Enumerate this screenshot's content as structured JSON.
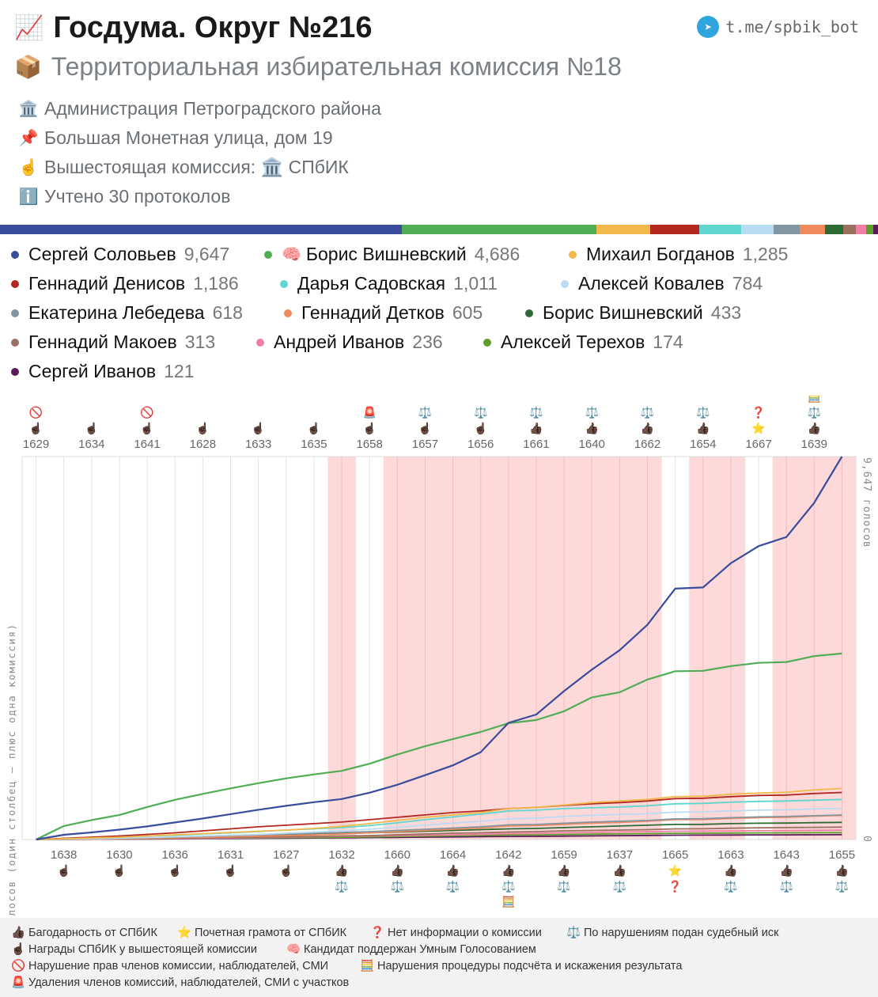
{
  "header": {
    "title_icon": "chart-increasing-icon",
    "title": "Госдума. Округ №216",
    "subtitle_icon": "package-icon",
    "subtitle": "Территориальная избирательная комиссия №18",
    "telegram_icon": "telegram-icon",
    "telegram": "t.me/spbik_bot",
    "info": [
      {
        "icon": "🏛️",
        "text": "Администрация Петроградского района"
      },
      {
        "icon": "📌",
        "text": "Большая Монетная улица, дом 19"
      },
      {
        "icon": "☝️",
        "text": "Вышестоящая комиссия: 🏛️ СПбИК"
      },
      {
        "icon": "ℹ️",
        "text": "Учтено 30 протоколов"
      }
    ]
  },
  "candidates": [
    {
      "name": "Сергей Соловьев",
      "votes": "9,647",
      "value": 9647,
      "color": "#3a4d9c"
    },
    {
      "name": "Борис Вишневский",
      "votes": "4,686",
      "value": 4686,
      "color": "#4fae55",
      "prefix": "🧠"
    },
    {
      "name": "Михаил Богданов",
      "votes": "1,285",
      "value": 1285,
      "color": "#f2b84b"
    },
    {
      "name": "Геннадий Денисов",
      "votes": "1,186",
      "value": 1186,
      "color": "#b3271f"
    },
    {
      "name": "Дарья Садовская",
      "votes": "1,011",
      "value": 1011,
      "color": "#5fd6cf"
    },
    {
      "name": "Алексей Ковалев",
      "votes": "784",
      "value": 784,
      "color": "#b9dcf5"
    },
    {
      "name": "Екатерина Лебедева",
      "votes": "618",
      "value": 618,
      "color": "#8296a1"
    },
    {
      "name": "Геннадий Детков",
      "votes": "605",
      "value": 605,
      "color": "#f08a5d"
    },
    {
      "name": "Борис Вишневский",
      "votes": "433",
      "value": 433,
      "color": "#2e6b34"
    },
    {
      "name": "Геннадий Макоев",
      "votes": "313",
      "value": 313,
      "color": "#9b7060"
    },
    {
      "name": "Андрей Иванов",
      "votes": "236",
      "value": 236,
      "color": "#ef7fa3"
    },
    {
      "name": "Алексей Терехов",
      "votes": "174",
      "value": 174,
      "color": "#5e9e2c"
    },
    {
      "name": "Сергей Иванов",
      "votes": "121",
      "value": 121,
      "color": "#5a1a5a"
    }
  ],
  "chart_data": {
    "type": "line",
    "ylabel": "набранная сумма голосов (один столбец — плюс одна комиссия)",
    "right_label_top": "9,647 голосов",
    "right_label_bottom": "0",
    "ylim": [
      0,
      9647
    ],
    "x_top": [
      "1629",
      "1634",
      "1641",
      "1628",
      "1633",
      "1635",
      "1658",
      "1657",
      "1656",
      "1661",
      "1640",
      "1662",
      "1654",
      "1667",
      "1639"
    ],
    "x_bottom": [
      "1638",
      "1630",
      "1636",
      "1631",
      "1627",
      "1632",
      "1660",
      "1664",
      "1642",
      "1659",
      "1637",
      "1665",
      "1663",
      "1643",
      "1655"
    ],
    "x_order": [
      "1629",
      "1638",
      "1634",
      "1630",
      "1641",
      "1636",
      "1628",
      "1631",
      "1633",
      "1627",
      "1635",
      "1632",
      "1658",
      "1660",
      "1657",
      "1664",
      "1656",
      "1642",
      "1661",
      "1659",
      "1640",
      "1637",
      "1662",
      "1665",
      "1654",
      "1663",
      "1667",
      "1643",
      "1639",
      "1655"
    ],
    "flagged": [
      0,
      0,
      0,
      0,
      0,
      0,
      0,
      0,
      0,
      0,
      0,
      1,
      0,
      1,
      1,
      1,
      1,
      1,
      1,
      1,
      1,
      1,
      1,
      0,
      1,
      1,
      0,
      1,
      1,
      1
    ],
    "series": [
      {
        "name": "Сергей Соловьев",
        "values": [
          0,
          120,
          180,
          250,
          330,
          430,
          530,
          640,
          750,
          850,
          940,
          1020,
          1180,
          1380,
          1620,
          1870,
          2200,
          2940,
          3150,
          3740,
          4280,
          4770,
          5410,
          6320,
          6350,
          6960,
          7390,
          7620,
          8480,
          9647
        ]
      },
      {
        "name": "Борис Вишневский",
        "values": [
          0,
          340,
          490,
          620,
          820,
          1000,
          1150,
          1290,
          1420,
          1540,
          1640,
          1730,
          1910,
          2140,
          2350,
          2530,
          2710,
          2930,
          3010,
          3230,
          3580,
          3710,
          4030,
          4240,
          4250,
          4370,
          4450,
          4470,
          4620,
          4686
        ]
      },
      {
        "name": "Михаил Богданов",
        "values": [
          0,
          20,
          40,
          60,
          90,
          120,
          150,
          180,
          210,
          240,
          280,
          330,
          400,
          480,
          560,
          620,
          680,
          780,
          810,
          870,
          930,
          970,
          1010,
          1080,
          1090,
          1140,
          1170,
          1190,
          1250,
          1285
        ]
      },
      {
        "name": "Геннадий Денисов",
        "values": [
          0,
          30,
          60,
          90,
          130,
          170,
          220,
          270,
          320,
          360,
          400,
          440,
          500,
          560,
          620,
          680,
          720,
          780,
          810,
          860,
          900,
          930,
          970,
          1030,
          1040,
          1080,
          1110,
          1120,
          1160,
          1186
        ]
      },
      {
        "name": "Дарья Садовская",
        "values": [
          0,
          20,
          40,
          60,
          90,
          110,
          140,
          170,
          200,
          240,
          270,
          300,
          350,
          420,
          500,
          570,
          640,
          720,
          740,
          780,
          800,
          820,
          850,
          900,
          910,
          940,
          960,
          970,
          990,
          1011
        ]
      },
      {
        "name": "Алексей Ковалев",
        "values": [
          0,
          10,
          20,
          35,
          50,
          70,
          90,
          110,
          130,
          160,
          190,
          220,
          260,
          310,
          360,
          410,
          460,
          520,
          540,
          580,
          610,
          630,
          650,
          690,
          695,
          720,
          740,
          750,
          770,
          784
        ]
      },
      {
        "name": "Екатерина Лебедева",
        "values": [
          0,
          10,
          20,
          30,
          45,
          60,
          80,
          100,
          120,
          140,
          160,
          180,
          200,
          230,
          260,
          290,
          320,
          370,
          380,
          410,
          440,
          460,
          480,
          520,
          525,
          550,
          570,
          580,
          600,
          618
        ]
      },
      {
        "name": "Геннадий Детков",
        "values": [
          0,
          5,
          10,
          20,
          30,
          40,
          55,
          70,
          85,
          100,
          120,
          140,
          170,
          200,
          230,
          260,
          290,
          340,
          350,
          380,
          410,
          430,
          460,
          500,
          505,
          530,
          550,
          560,
          590,
          605
        ]
      },
      {
        "name": "Борис Вишневский",
        "values": [
          0,
          10,
          20,
          30,
          45,
          60,
          75,
          90,
          105,
          120,
          135,
          150,
          170,
          190,
          210,
          230,
          250,
          270,
          280,
          300,
          320,
          340,
          360,
          380,
          382,
          400,
          410,
          415,
          425,
          433
        ]
      },
      {
        "name": "Геннадий Макоев",
        "values": [
          0,
          5,
          10,
          15,
          20,
          30,
          40,
          50,
          60,
          70,
          80,
          90,
          100,
          120,
          140,
          160,
          170,
          190,
          200,
          220,
          230,
          240,
          250,
          270,
          272,
          285,
          295,
          300,
          307,
          313
        ]
      },
      {
        "name": "Андрей Иванов",
        "values": [
          0,
          5,
          10,
          15,
          20,
          25,
          30,
          40,
          50,
          60,
          70,
          80,
          90,
          100,
          110,
          120,
          130,
          150,
          155,
          170,
          180,
          190,
          200,
          210,
          211,
          218,
          224,
          228,
          232,
          236
        ]
      },
      {
        "name": "Алексей Терехов",
        "values": [
          0,
          5,
          10,
          15,
          20,
          25,
          30,
          35,
          40,
          45,
          50,
          55,
          65,
          75,
          85,
          95,
          105,
          115,
          118,
          128,
          135,
          142,
          150,
          158,
          159,
          164,
          168,
          170,
          172,
          174
        ]
      },
      {
        "name": "Сергей Иванов",
        "values": [
          0,
          3,
          6,
          10,
          14,
          18,
          22,
          26,
          30,
          34,
          38,
          42,
          48,
          54,
          60,
          66,
          72,
          78,
          80,
          86,
          92,
          98,
          104,
          110,
          111,
          114,
          117,
          118,
          120,
          121
        ]
      }
    ]
  },
  "badges": {
    "top_upper": [
      "🚫",
      "",
      "🚫",
      "",
      "",
      "",
      "🚨",
      "⚖️",
      "⚖️",
      "⚖️",
      "⚖️",
      "⚖️",
      "⚖️",
      "❓",
      "🧮"
    ],
    "top_middle": [
      "",
      "",
      "",
      "",
      "",
      "",
      "",
      "",
      "",
      "",
      "",
      "",
      "",
      "",
      "⚖️"
    ],
    "top_lower": [
      "☝🏿",
      "☝🏿",
      "☝🏿",
      "☝🏿",
      "☝🏿",
      "☝🏿",
      "☝🏿",
      "☝🏿",
      "☝🏿",
      "👍🏿",
      "👍🏿",
      "👍🏿",
      "👍🏿",
      "⭐",
      "👍🏿"
    ],
    "bottom_upper": [
      "☝🏿",
      "☝🏿",
      "☝🏿",
      "☝🏿",
      "☝🏿",
      "👍🏿",
      "👍🏿",
      "👍🏿",
      "👍🏿",
      "👍🏿",
      "👍🏿",
      "⭐",
      "👍🏿",
      "👍🏿",
      "👍🏿"
    ],
    "bottom_lower": [
      "",
      "",
      "",
      "",
      "",
      "⚖️",
      "⚖️",
      "⚖️",
      "⚖️",
      "⚖️",
      "⚖️",
      "❓",
      "⚖️",
      "⚖️",
      "⚖️"
    ],
    "bottom_third": [
      "",
      "",
      "",
      "",
      "",
      "",
      "",
      "",
      "🧮",
      "",
      "",
      "",
      "",
      "",
      ""
    ]
  },
  "footer": [
    {
      "icon": "👍🏿",
      "text": "Багодарность от СПбИК"
    },
    {
      "icon": "⭐",
      "text": "Почетная грамота от СПбИК"
    },
    {
      "icon": "❓",
      "text": "Нет информации о комиссии"
    },
    {
      "icon": "⚖️",
      "text": "По нарушениям подан судебный иск"
    },
    {
      "icon": "☝🏿",
      "text": "Награды СПбИК у вышестоящей комиссии"
    },
    {
      "icon": "🧠",
      "text": "Кандидат поддержан Умным Голосованием"
    },
    {
      "icon": "🚫",
      "text": "Нарушение прав членов комиссии, наблюдателей, СМИ"
    },
    {
      "icon": "🧮",
      "text": "Нарушения процедуры подсчёта и искажения результата"
    },
    {
      "icon": "🚨",
      "text": "Удаления членов комиссий, наблюдателей, СМИ с участков"
    }
  ]
}
